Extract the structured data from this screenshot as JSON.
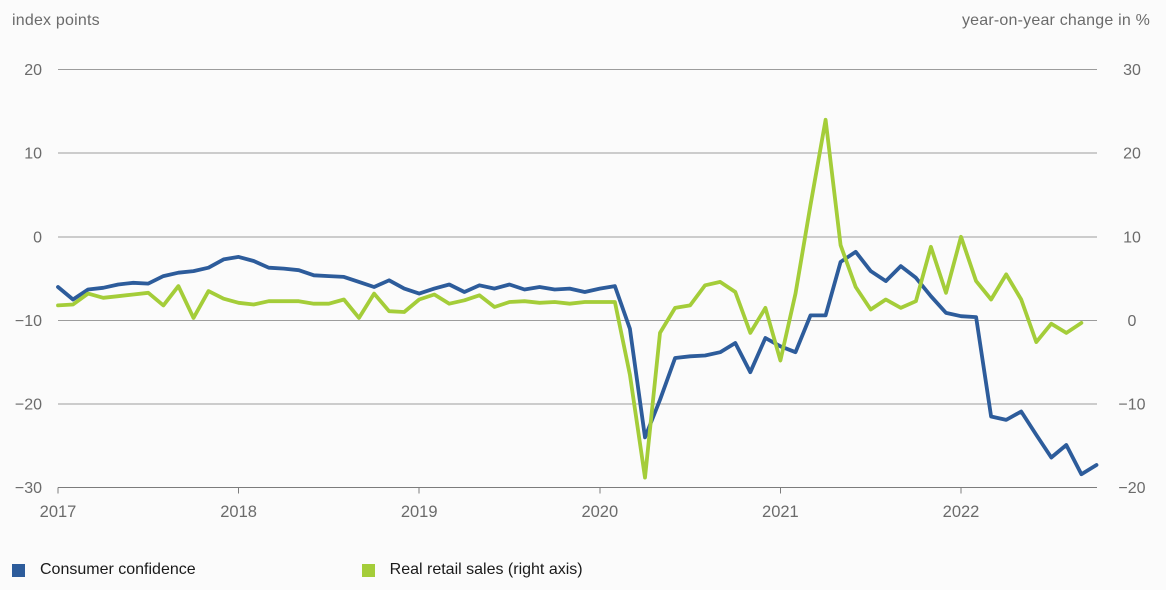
{
  "header": {
    "left_axis_title": "index points",
    "right_axis_title": "year-on-year change in %"
  },
  "colors": {
    "confidence_blue": "#2d5c9b",
    "retail_green": "#a4cd39",
    "gridline_gray": "#9c9c9c",
    "axis_gray": "#7c7c7c",
    "tick_text_gray": "#6b6b6b",
    "legend_text": "#1a1a1a",
    "background": "#fbfbfb"
  },
  "legend": {
    "items": [
      {
        "label": "Consumer confidence",
        "color": "#2d5c9b"
      },
      {
        "label": "Real retail sales (right axis)",
        "color": "#a4cd39"
      }
    ]
  },
  "chart_data": {
    "type": "line",
    "title": "",
    "x_ticks": [
      "2017",
      "2018",
      "2019",
      "2020",
      "2021",
      "2022"
    ],
    "frequency": "monthly",
    "start": "2017-01",
    "left_axis": {
      "title": "index points",
      "ticks": [
        20,
        10,
        0,
        -10,
        -20,
        -30
      ],
      "labels": [
        "20",
        "10",
        "0",
        "−10",
        "−20",
        "−30"
      ],
      "range": [
        -30,
        20
      ]
    },
    "right_axis": {
      "title": "year-on-year change in %",
      "ticks": [
        30,
        20,
        10,
        0,
        -10,
        -20
      ],
      "labels": [
        "30",
        "20",
        "10",
        "0",
        "−10",
        "−20"
      ],
      "range": [
        -20,
        30
      ]
    },
    "grid": true,
    "legend_position": "bottom",
    "series": [
      {
        "name": "Consumer confidence",
        "axis": "left",
        "color": "#2d5c9b",
        "start": "2017-01",
        "end": "2022-10",
        "values": [
          -6.0,
          -7.5,
          -6.3,
          -6.1,
          -5.7,
          -5.5,
          -5.6,
          -4.7,
          -4.3,
          -4.1,
          -3.7,
          -2.7,
          -2.4,
          -2.9,
          -3.7,
          -3.8,
          -4.0,
          -4.6,
          -4.7,
          -4.8,
          -5.4,
          -6.0,
          -5.2,
          -6.2,
          -6.8,
          -6.2,
          -5.7,
          -6.6,
          -5.8,
          -6.2,
          -5.7,
          -6.3,
          -6.0,
          -6.3,
          -6.2,
          -6.6,
          -6.2,
          -5.9,
          -11.0,
          -24.0,
          -19.5,
          -14.5,
          -14.3,
          -14.2,
          -13.8,
          -12.7,
          -16.2,
          -12.1,
          -13.1,
          -13.8,
          -9.4,
          -9.4,
          -3.0,
          -1.8,
          -4.1,
          -5.3,
          -3.5,
          -4.9,
          -7.1,
          -9.1,
          -9.5,
          -9.6,
          -21.5,
          -21.9,
          -20.9,
          -23.7,
          -26.4,
          -24.9,
          -28.4,
          -27.3
        ]
      },
      {
        "name": "Real retail sales (right axis)",
        "axis": "right",
        "color": "#a4cd39",
        "start": "2017-01",
        "end": "2022-09",
        "values": [
          1.8,
          1.9,
          3.2,
          2.7,
          2.9,
          3.1,
          3.3,
          1.8,
          4.1,
          0.3,
          3.5,
          2.6,
          2.1,
          1.9,
          2.3,
          2.3,
          2.3,
          2.0,
          2.0,
          2.5,
          0.3,
          3.2,
          1.1,
          1.0,
          2.5,
          3.1,
          2.0,
          2.4,
          3.0,
          1.6,
          2.2,
          2.3,
          2.1,
          2.2,
          2.0,
          2.2,
          2.2,
          2.2,
          -6.5,
          -18.8,
          -1.5,
          1.5,
          1.8,
          4.2,
          4.6,
          3.4,
          -1.5,
          1.5,
          -4.8,
          3.2,
          13.8,
          24.0,
          9.0,
          4.0,
          1.3,
          2.5,
          1.5,
          2.3,
          8.8,
          3.3,
          10.0,
          4.7,
          2.5,
          5.5,
          2.5,
          -2.6,
          -0.4,
          -1.5,
          -0.3
        ]
      }
    ]
  }
}
